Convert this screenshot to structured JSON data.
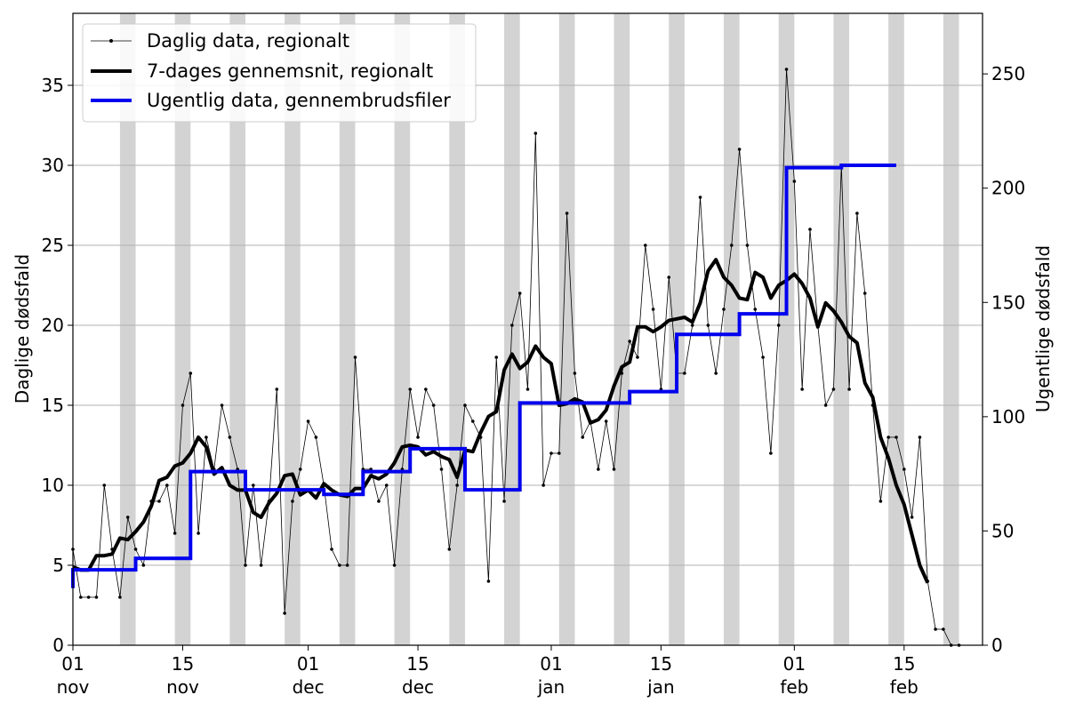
{
  "chart_data": {
    "type": "line",
    "xlabel": "",
    "ylabel": "Daglige dødsfald",
    "y2label": "Ugentlige dødsfald",
    "ylim": [
      0,
      39.5
    ],
    "y2lim": [
      0,
      276.5
    ],
    "yticks": [
      0,
      5,
      10,
      15,
      20,
      25,
      30,
      35
    ],
    "y2ticks": [
      0,
      50,
      100,
      150,
      200,
      250
    ],
    "x_range_days": [
      "2020-11-01",
      "2021-02-25"
    ],
    "x_ticks": [
      {
        "date": "2020-11-01",
        "day": "01",
        "month": "nov"
      },
      {
        "date": "2020-11-15",
        "day": "15",
        "month": "nov"
      },
      {
        "date": "2020-12-01",
        "day": "01",
        "month": "dec"
      },
      {
        "date": "2020-12-15",
        "day": "15",
        "month": "dec"
      },
      {
        "date": "2021-01-01",
        "day": "01",
        "month": "jan"
      },
      {
        "date": "2021-01-15",
        "day": "15",
        "month": "jan"
      },
      {
        "date": "2021-02-01",
        "day": "01",
        "month": "feb"
      },
      {
        "date": "2021-02-15",
        "day": "15",
        "month": "feb"
      }
    ],
    "grid": "horizontal",
    "shaded_weekends": [
      "2020-11-07",
      "2020-11-14",
      "2020-11-21",
      "2020-11-28",
      "2020-12-05",
      "2020-12-12",
      "2020-12-19",
      "2020-12-26",
      "2021-01-02",
      "2021-01-09",
      "2021-01-16",
      "2021-01-23",
      "2021-01-30",
      "2021-02-06",
      "2021-02-13",
      "2021-02-20",
      "2021-02-27"
    ],
    "legend_position": "top-left",
    "series": [
      {
        "name": "Daglig data, regionalt",
        "axis": "left",
        "color": "#000000",
        "start_date": "2020-11-01",
        "values": [
          6,
          3,
          3,
          3,
          10,
          6,
          3,
          8,
          6,
          5,
          9,
          9,
          10,
          7,
          15,
          17,
          7,
          13,
          11,
          15,
          13,
          11,
          5,
          10,
          5,
          9,
          16,
          2,
          9,
          11,
          14,
          13,
          10,
          6,
          5,
          5,
          18,
          11,
          11,
          9,
          10,
          5,
          11,
          16,
          13,
          16,
          15,
          11,
          6,
          10,
          15,
          14,
          13,
          4,
          18,
          9,
          20,
          22,
          16,
          32,
          10,
          12,
          12,
          27,
          17,
          13,
          14,
          11,
          14,
          11,
          17,
          19,
          18,
          25,
          21,
          16,
          23,
          17,
          17,
          20,
          28,
          20,
          17,
          21,
          25,
          31,
          25,
          21,
          18,
          12,
          20,
          36,
          29,
          16,
          26,
          20,
          15,
          16,
          30,
          16,
          27,
          22,
          15,
          9,
          13,
          13,
          11,
          8,
          13,
          4,
          1,
          1,
          0,
          0
        ]
      },
      {
        "name": "7-dages gennemsnit, regionalt",
        "axis": "left",
        "color": "#000000",
        "start_date": "2020-11-01",
        "values": [
          4.9,
          4.7,
          4.7,
          5.6,
          5.6,
          5.7,
          6.7,
          6.6,
          7.1,
          7.7,
          8.7,
          10.3,
          10.5,
          11.2,
          11.4,
          12.0,
          13.0,
          12.4,
          10.7,
          11.1,
          10.0,
          9.7,
          9.7,
          8.3,
          8.0,
          8.9,
          9.5,
          10.6,
          10.7,
          9.4,
          9.7,
          9.2,
          10.1,
          9.7,
          9.4,
          9.3,
          9.8,
          9.8,
          10.6,
          10.4,
          10.7,
          11.4,
          12.4,
          12.5,
          12.4,
          11.9,
          12.1,
          11.8,
          11.6,
          10.5,
          12.2,
          12.1,
          13.3,
          14.3,
          14.6,
          17.2,
          18.2,
          17.3,
          17.7,
          18.7,
          18.0,
          17.6,
          15.0,
          15.1,
          15.4,
          15.2,
          13.9,
          14.1,
          14.7,
          16.2,
          17.4,
          17.7,
          19.9,
          19.9,
          19.6,
          19.9,
          20.3,
          20.4,
          20.5,
          20.2,
          21.4,
          23.4,
          24.1,
          23.0,
          22.5,
          21.7,
          21.6,
          23.3,
          23.0,
          21.7,
          22.5,
          22.8,
          23.2,
          22.6,
          21.7,
          19.9,
          21.4,
          20.9,
          20.2,
          19.3,
          18.9,
          16.4,
          15.5,
          13.0,
          11.7,
          10.0,
          8.8,
          6.9,
          5.0,
          3.9
        ]
      },
      {
        "name": "Ugentlig data, gennembrudsfiler",
        "axis": "right",
        "color": "#0000ee",
        "weekly": [
          {
            "start": "2020-11-01",
            "end": "2020-11-09",
            "value": 33
          },
          {
            "start": "2020-11-09",
            "end": "2020-11-16",
            "value": 38
          },
          {
            "start": "2020-11-16",
            "end": "2020-11-23",
            "value": 76
          },
          {
            "start": "2020-11-23",
            "end": "2020-12-03",
            "value": 68
          },
          {
            "start": "2020-12-03",
            "end": "2020-12-08",
            "value": 66
          },
          {
            "start": "2020-12-08",
            "end": "2020-12-14",
            "value": 76
          },
          {
            "start": "2020-12-14",
            "end": "2020-12-21",
            "value": 86
          },
          {
            "start": "2020-12-21",
            "end": "2020-12-28",
            "value": 68
          },
          {
            "start": "2020-12-28",
            "end": "2021-01-11",
            "value": 106
          },
          {
            "start": "2021-01-11",
            "end": "2021-01-17",
            "value": 111
          },
          {
            "start": "2021-01-17",
            "end": "2021-01-25",
            "value": 136
          },
          {
            "start": "2021-01-25",
            "end": "2021-01-31",
            "value": 145
          },
          {
            "start": "2021-01-31",
            "end": "2021-02-07",
            "value": 209
          },
          {
            "start": "2021-02-07",
            "end": "2021-02-14",
            "value": 210
          }
        ]
      }
    ]
  }
}
